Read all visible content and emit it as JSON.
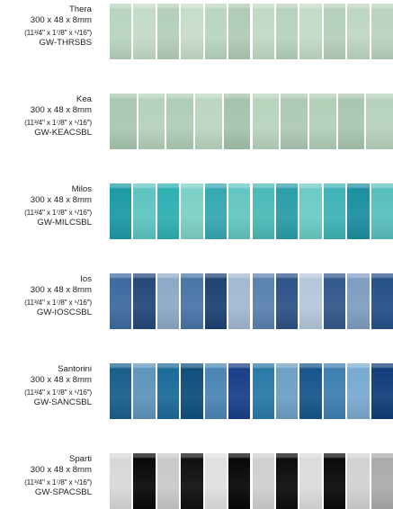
{
  "products": [
    {
      "name": "Thera",
      "dims_metric": "300 x 48 x 8mm",
      "dims_imperial": "(11³/4\" x 1⁷/8\" x ⁵/16\")",
      "code": "GW-THRSBS",
      "colors": [
        "#b8d4bf",
        "#c2dbc6",
        "#b3cfb9",
        "#c6ddc9",
        "#bad5c0",
        "#afcbb5",
        "#c0d9c4",
        "#b6d2bc",
        "#c3dbc7",
        "#b4d0ba",
        "#bed7c2",
        "#b9d3be"
      ]
    },
    {
      "name": "Kea",
      "dims_metric": "300 x 48 x 8mm",
      "dims_imperial": "(11³/4\" x 1⁷/8\" x ⁵/16\")",
      "code": "GW-KEACSBL",
      "colors": [
        "#a8c8b1",
        "#b5d1bb",
        "#aecdb6",
        "#bbd6c1",
        "#a4c3ad",
        "#b8d4bd",
        "#adc9b4",
        "#b2cfb8",
        "#a9c6b0",
        "#b6d2bc"
      ]
    },
    {
      "name": "Milos",
      "dims_metric": "300 x 48 x 8mm",
      "dims_imperial": "(11³/4\" x 1⁷/8\" x ⁵/16\")",
      "code": "GW-MILCSBL",
      "colors": [
        "#1d9aa6",
        "#5fc4c0",
        "#2eb0b3",
        "#7dd0c7",
        "#36a8b0",
        "#63c6c2",
        "#4bbab9",
        "#2a9ea8",
        "#6ccbc4",
        "#3fb3b6",
        "#1c8f9f",
        "#58c0be"
      ]
    },
    {
      "name": "Ios",
      "dims_metric": "300 x 48 x 8mm",
      "dims_imperial": "(11³/4\" x 1⁷/8\" x ⁵/16\")",
      "code": "GW-IOSCSBL",
      "colors": [
        "#3f6a9f",
        "#24497a",
        "#8ea9c8",
        "#4a75a8",
        "#1f4373",
        "#a3b9d2",
        "#5a82b0",
        "#2e5388",
        "#b5c7db",
        "#34598c",
        "#7f9dc2",
        "#27508a"
      ]
    },
    {
      "name": "Santorini",
      "dims_metric": "300 x 48 x 8mm",
      "dims_imperial": "(11³/4\" x 1⁷/8\" x ⁵/16\")",
      "code": "GW-SANCSBL",
      "colors": [
        "#1a5f8c",
        "#5f94bc",
        "#1d6b9a",
        "#0f4f7e",
        "#4b86b4",
        "#1b3f8a",
        "#2a7aa8",
        "#6da0c4",
        "#17568c",
        "#3e7fb0",
        "#7aaad0",
        "#123e7a"
      ]
    },
    {
      "name": "Sparti",
      "dims_metric": "300 x 48 x 8mm",
      "dims_imperial": "(11³/4\" x 1⁷/8\" x ⁵/16\")",
      "code": "GW-SPACSBL",
      "colors": [
        "#d8d8d8",
        "#0a0a0a",
        "#c9c9c9",
        "#111111",
        "#e0e0e0",
        "#080808",
        "#cfcfcf",
        "#0d0d0d",
        "#dcdcdc",
        "#0b0b0b",
        "#d2d2d2",
        "#ababab"
      ]
    }
  ]
}
